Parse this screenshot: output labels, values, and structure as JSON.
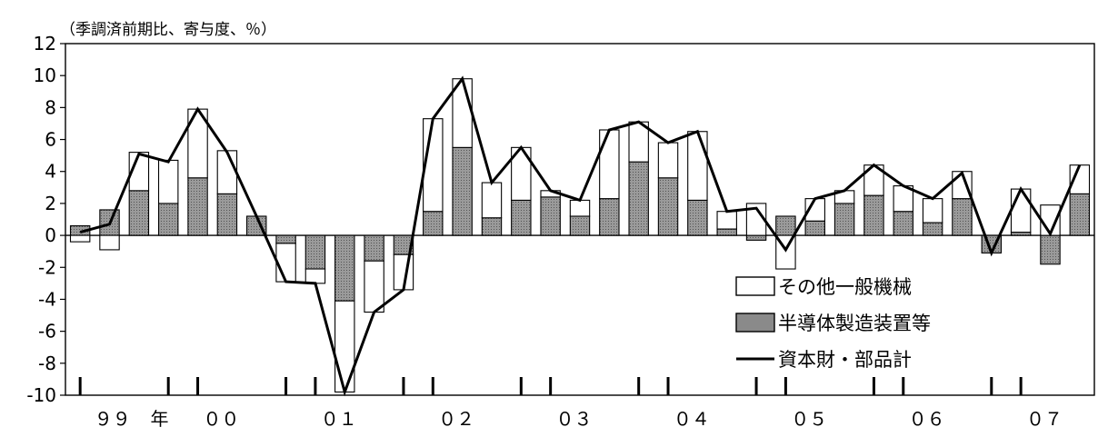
{
  "chart_data": {
    "type": "bar",
    "unit_label": "（季調済前期比、寄与度、％）",
    "ylim": [
      -10,
      12
    ],
    "y_ticks": [
      "12",
      "10",
      "8",
      "6",
      "4",
      "2",
      "0",
      "-2",
      "-4",
      "-6",
      "-8",
      "-10"
    ],
    "year_labels": [
      {
        "text": "９９",
        "q": 1.6
      },
      {
        "text": "年",
        "q": 3.2
      },
      {
        "text": "００",
        "q": 5.3
      },
      {
        "text": "０１",
        "q": 9.3
      },
      {
        "text": "０２",
        "q": 13.3
      },
      {
        "text": "０３",
        "q": 17.3
      },
      {
        "text": "０４",
        "q": 21.3
      },
      {
        "text": "０５",
        "q": 25.3
      },
      {
        "text": "０６",
        "q": 29.3
      },
      {
        "text": "０７",
        "q": 33.3
      }
    ],
    "year_tick_pairs": [
      [
        0.5,
        3.5
      ],
      [
        4.5,
        7.5
      ],
      [
        8.5,
        11.5
      ],
      [
        12.5,
        15.5
      ],
      [
        16.5,
        19.5
      ],
      [
        20.5,
        23.5
      ],
      [
        24.5,
        27.5
      ],
      [
        28.5,
        31.5
      ],
      [
        32.5,
        35.5
      ]
    ],
    "series": [
      {
        "name": "半導体製造装置等",
        "kind": "bar",
        "color": "#8a8a8a",
        "values": [
          0.6,
          1.6,
          2.8,
          2.0,
          3.6,
          2.6,
          1.2,
          -0.5,
          -2.1,
          -4.1,
          -1.6,
          -1.2,
          1.5,
          5.5,
          1.1,
          2.2,
          2.4,
          1.2,
          2.3,
          4.6,
          3.6,
          2.2,
          0.4,
          -0.3,
          1.2,
          0.9,
          2.0,
          2.5,
          1.5,
          0.8,
          2.3,
          -1.1,
          0.2,
          -1.8,
          2.6
        ]
      },
      {
        "name": "その他一般機械",
        "kind": "bar",
        "color": "#ffffff",
        "values": [
          -0.4,
          -0.9,
          2.4,
          2.7,
          4.3,
          2.7,
          0.0,
          -2.4,
          -0.9,
          -5.7,
          -3.2,
          -2.2,
          5.8,
          4.3,
          2.2,
          3.3,
          0.4,
          1.0,
          4.3,
          2.5,
          2.2,
          4.3,
          1.1,
          2.0,
          -2.1,
          1.4,
          0.8,
          1.9,
          1.6,
          1.5,
          1.7,
          0.0,
          2.7,
          1.9,
          1.8
        ]
      },
      {
        "name": "資本財・部品計",
        "kind": "line",
        "color": "#000000",
        "values": [
          0.2,
          0.7,
          5.1,
          4.6,
          7.9,
          5.2,
          1.2,
          -2.9,
          -3.0,
          -9.8,
          -4.8,
          -3.4,
          7.3,
          9.8,
          3.3,
          5.5,
          2.8,
          2.2,
          6.6,
          7.1,
          5.8,
          6.5,
          1.5,
          1.7,
          -0.9,
          2.3,
          2.8,
          4.4,
          3.1,
          2.3,
          3.9,
          -1.1,
          2.9,
          0.1,
          4.4
        ]
      }
    ]
  }
}
